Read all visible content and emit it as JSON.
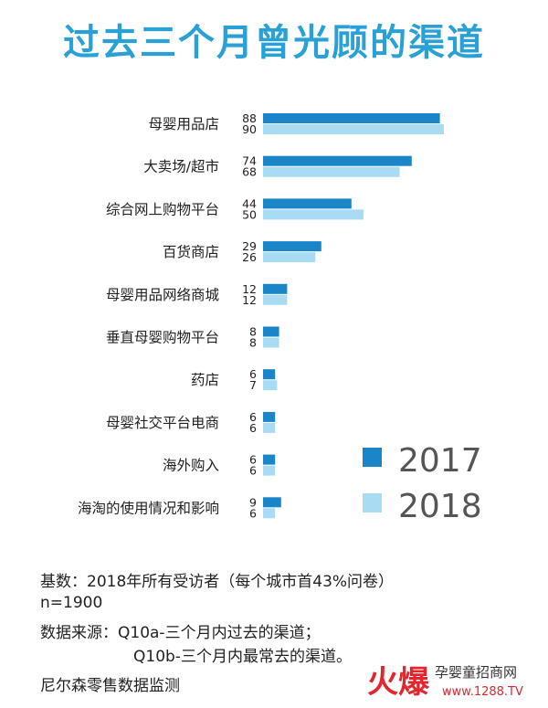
{
  "chart_data": {
    "type": "bar",
    "orientation": "horizontal",
    "title": "过去三个月曾光顾的渠道",
    "categories": [
      "母婴用品店",
      "大卖场/超市",
      "综合网上购物平台",
      "百货商店",
      "母婴用品网络商城",
      "垂直母婴购物平台",
      "药店",
      "母婴社交平台电商",
      "海外购入",
      "海淘的使用情况和影响"
    ],
    "series": [
      {
        "name": "2017",
        "values": [
          88,
          74,
          44,
          29,
          12,
          8,
          6,
          6,
          6,
          9
        ],
        "color": "#1a86c8"
      },
      {
        "name": "2018",
        "values": [
          90,
          68,
          50,
          26,
          12,
          8,
          7,
          6,
          6,
          6
        ],
        "color": "#a9dcf4"
      }
    ],
    "xlim": [
      0,
      100
    ],
    "grid": false,
    "legend": "bottom-right",
    "data_labels": true
  },
  "notes": {
    "base": "基数：2018年所有受访者（每个城市首43%问卷）",
    "n": "n=1900",
    "source_a": "数据来源：Q10a-三个月内过去的渠道；",
    "source_b": "Q10b-三个月内最常去的渠道。",
    "monitor": "尼尔森零售数据监测"
  },
  "watermark": {
    "logo": "火爆",
    "site_name": "孕婴童招商网",
    "url": "www.1288.TV"
  }
}
